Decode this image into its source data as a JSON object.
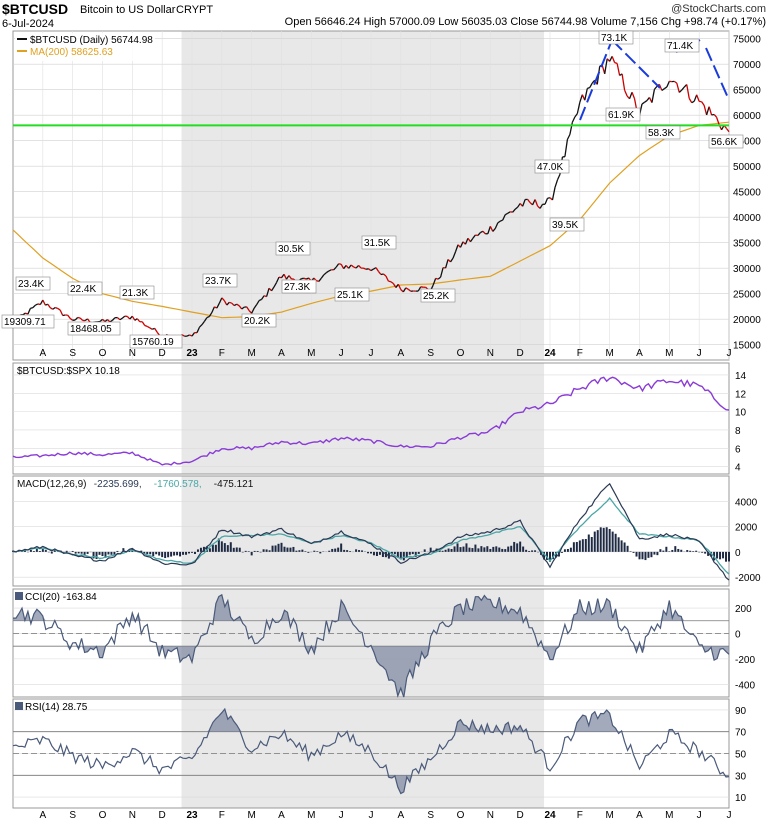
{
  "header": {
    "symbol": "$BTCUSD",
    "name": "Bitcoin to US Dollar",
    "exchange": "CRYPT",
    "date": "6-Jul-2024",
    "watermark": "@StockCharts.com",
    "quote": "Open 56646.24 High 57000.09 Low 56035.03 Close 56744.98 Volume 7,156 Chg +98.74 (+0.17%)"
  },
  "colors": {
    "price": "#111111",
    "price_red": "#cc0000",
    "ma": "#e0a020",
    "support": "#22dd22",
    "pattern": "#1a3cdc",
    "ratio": "#8a3bd6",
    "macd": "#2a3a55",
    "signal": "#4aa6a6",
    "hist": "#1e2a44",
    "indicator": "#4a5a7a",
    "shade": "#e8e8e8"
  },
  "x_axis_labels": [
    "A",
    "S",
    "O",
    "N",
    "D",
    "23",
    "F",
    "M",
    "A",
    "M",
    "J",
    "J",
    "A",
    "S",
    "O",
    "N",
    "D",
    "24",
    "F",
    "M",
    "A",
    "M",
    "J",
    "J"
  ],
  "chart_data": [
    {
      "type": "line",
      "legend": [
        {
          "text": "$BTCUSD (Daily) 56744.98",
          "color": "#111111"
        },
        {
          "text": "MA(200) 58625.63",
          "color": "#e0a020"
        }
      ],
      "x": [
        "Jul 2022",
        "Aug 2022",
        "Sep 2022",
        "Oct 2022",
        "Nov 2022",
        "Dec 2022",
        "Jan 2023",
        "Feb 2023",
        "Mar 2023",
        "Apr 2023",
        "May 2023",
        "Jun 2023",
        "Jul 2023",
        "Aug 2023",
        "Sep 2023",
        "Oct 2023",
        "Nov 2023",
        "Dec 2023",
        "Jan 2024",
        "Feb 2024",
        "Mar 2024",
        "Apr 2024",
        "May 2024",
        "Jun 2024",
        "Jul 2024"
      ],
      "series": [
        {
          "name": "$BTCUSD",
          "values": [
            19310,
            23400,
            20000,
            19500,
            20500,
            16900,
            16600,
            23700,
            21500,
            28400,
            27300,
            30500,
            30100,
            26000,
            26000,
            34500,
            37700,
            42500,
            42800,
            62000,
            71300,
            60500,
            67500,
            62700,
            56745
          ]
        },
        {
          "name": "MA(200)",
          "values": [
            37500,
            32000,
            28000,
            25000,
            23500,
            22500,
            21400,
            20300,
            20500,
            21400,
            23100,
            24600,
            25500,
            26700,
            26900,
            27700,
            28400,
            31400,
            34400,
            39500,
            46700,
            52100,
            56000,
            58000,
            58625
          ]
        }
      ],
      "annotations": [
        "19309.71",
        "23.4K",
        "22.4K",
        "18468.05",
        "21.3K",
        "15760.19",
        "23.7K",
        "20.2K",
        "30.5K",
        "27.3K",
        "25.1K",
        "31.5K",
        "25.2K",
        "47.0K",
        "39.5K",
        "73.1K",
        "61.9K",
        "58.3K",
        "71.4K",
        "56.6K"
      ],
      "y_ticks": [
        75000,
        70000,
        65000,
        60000,
        55000,
        50000,
        45000,
        40000,
        35000,
        30000,
        25000,
        20000,
        15000
      ],
      "ylim": [
        12000,
        76500
      ],
      "support_level": 58000
    },
    {
      "type": "line",
      "legend": [
        {
          "text": "$BTCUSD:$SPX 10.18",
          "color": "#8a3bd6"
        }
      ],
      "series": [
        {
          "name": "$BTCUSD:$SPX",
          "values": [
            5.0,
            5.2,
            5.5,
            5.3,
            5.5,
            4.2,
            4.6,
            6.0,
            6.0,
            6.7,
            6.5,
            7.1,
            6.8,
            6.2,
            6.2,
            7.2,
            7.8,
            10.0,
            10.8,
            12.5,
            13.8,
            12.5,
            13.4,
            12.8,
            10.18
          ]
        }
      ],
      "y_ticks": [
        14,
        12,
        10,
        8,
        6,
        4
      ],
      "ylim": [
        3.2,
        15.3
      ]
    },
    {
      "type": "line",
      "legend": [
        {
          "text": "MACD(12,26,9)",
          "color": "#111111"
        },
        {
          "text": "-2235.699,",
          "color": "#2a3a55"
        },
        {
          "text": "-1760.578,",
          "color": "#4aa6a6"
        },
        {
          "text": "-475.121",
          "color": "#111111"
        }
      ],
      "series": [
        {
          "name": "MACD",
          "values": [
            0,
            400,
            -300,
            -700,
            300,
            -900,
            -1000,
            1800,
            1200,
            1800,
            600,
            1600,
            600,
            -800,
            -100,
            1200,
            1600,
            2400,
            -1200,
            2600,
            5500,
            1000,
            1400,
            800,
            -2236
          ]
        },
        {
          "name": "Signal",
          "values": [
            0,
            300,
            -200,
            -500,
            150,
            -650,
            -900,
            1200,
            1300,
            1400,
            700,
            1300,
            700,
            -500,
            -150,
            900,
            1400,
            2000,
            -700,
            2000,
            4200,
            1400,
            1200,
            900,
            -1761
          ]
        }
      ],
      "y_ticks": [
        4000,
        2000,
        0,
        -2000
      ],
      "ylim": [
        -2700,
        6000
      ]
    },
    {
      "type": "line",
      "legend": [
        {
          "text": "CCI(20) -163.84",
          "color": "#4a5a7a"
        }
      ],
      "series": [
        {
          "name": "CCI(20)",
          "values": [
            180,
            120,
            -80,
            -140,
            160,
            -150,
            -200,
            280,
            -60,
            180,
            -120,
            200,
            -90,
            -480,
            -60,
            200,
            240,
            180,
            -190,
            200,
            220,
            -140,
            220,
            -120,
            -164
          ]
        }
      ],
      "y_ticks": [
        200,
        0,
        -200,
        -400
      ],
      "reference_lines": [
        100,
        0,
        -100
      ],
      "ylim": [
        -500,
        350
      ]
    },
    {
      "type": "line",
      "legend": [
        {
          "text": "RSI(14) 28.75",
          "color": "#4a5a7a"
        }
      ],
      "series": [
        {
          "name": "RSI(14)",
          "values": [
            55,
            62,
            48,
            38,
            52,
            35,
            45,
            90,
            55,
            68,
            48,
            68,
            52,
            18,
            45,
            78,
            72,
            75,
            38,
            80,
            85,
            38,
            68,
            52,
            28.75
          ]
        }
      ],
      "y_ticks": [
        90,
        70,
        50,
        30,
        10
      ],
      "reference_lines": [
        70,
        50,
        30
      ],
      "ylim": [
        0,
        100
      ]
    }
  ]
}
